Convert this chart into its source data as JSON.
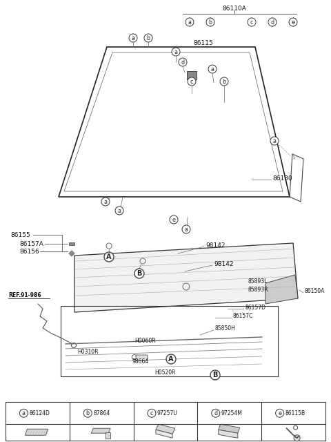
{
  "bg_color": "#ffffff",
  "part_numbers": {
    "main_label": "86110A",
    "windshield": "86130",
    "clip_label": "86115",
    "ref": "REF.91-986",
    "wiper_top": "98142",
    "wiper_bot": "98142",
    "left_bracket": "86155",
    "bracket_a": "86157A",
    "bracket_b": "86156",
    "motor_l": "85893L",
    "motor_r": "85893R",
    "cowl": "86150A",
    "link_d": "86157D",
    "link_c": "86157C",
    "rod1": "H0060R",
    "rod2": "H0310R",
    "nut": "98664",
    "rod3": "H0520R",
    "washer": "85850H"
  },
  "legend": [
    {
      "letter": "a",
      "code": "86124D"
    },
    {
      "letter": "b",
      "code": "87864"
    },
    {
      "letter": "c",
      "code": "97257U"
    },
    {
      "letter": "d",
      "code": "97254M"
    },
    {
      "letter": "e",
      "code": "86115B"
    }
  ]
}
